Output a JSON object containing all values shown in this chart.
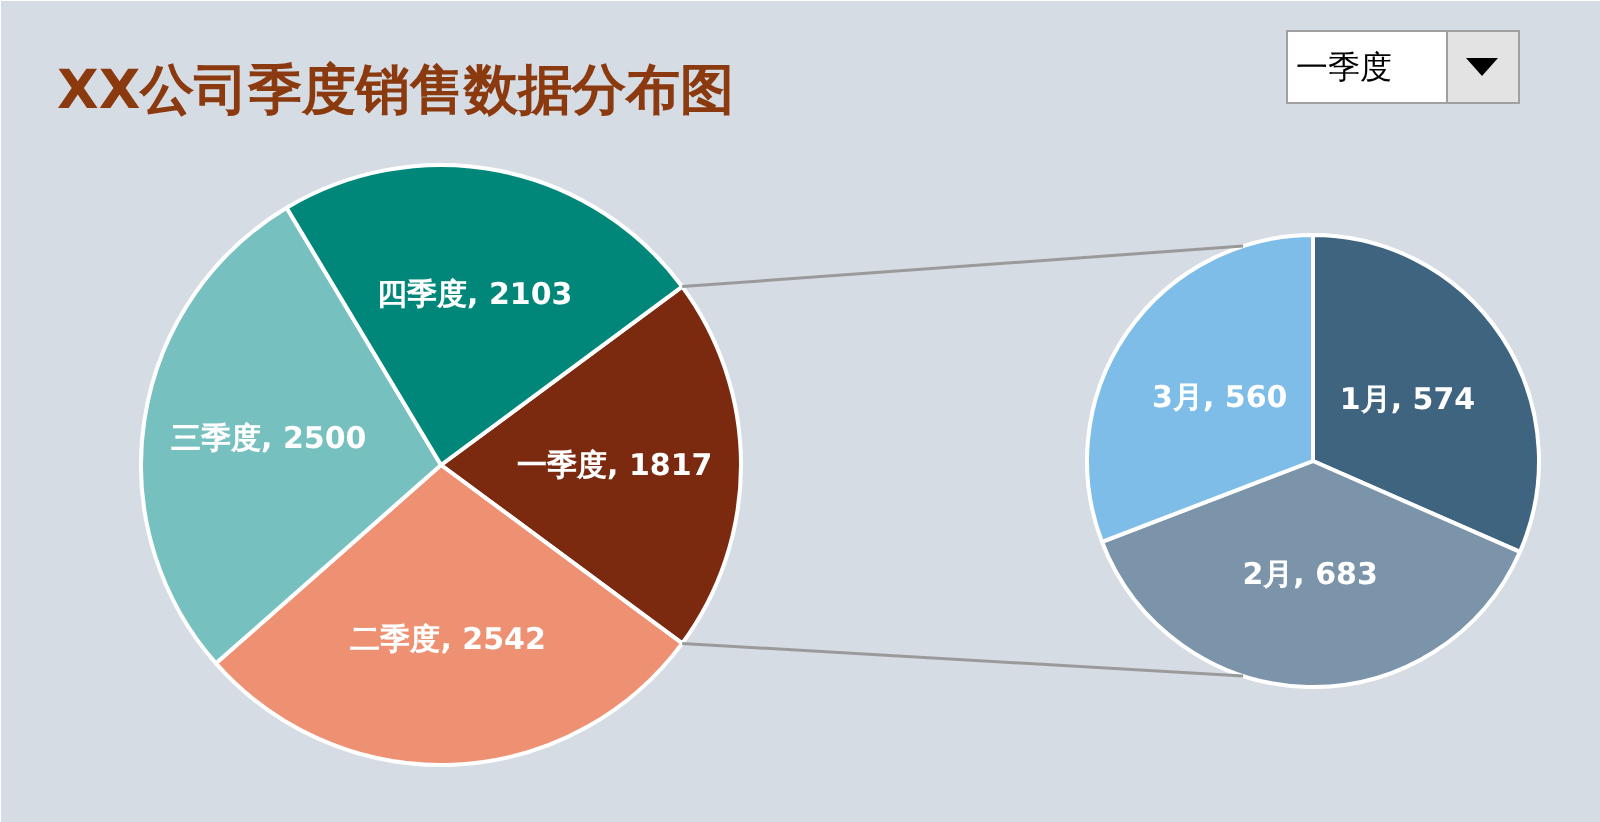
{
  "chart_data": [
    {
      "type": "pie",
      "title": "XX公司季度销售数据分布图",
      "categories": [
        "一季度",
        "二季度",
        "三季度",
        "四季度"
      ],
      "values": [
        1817,
        2542,
        2500,
        2103
      ],
      "value_labels": [
        ", 1817",
        ", 2542",
        ", 2500",
        ", 2103"
      ],
      "colors": [
        "#7b2a10",
        "#ee9173",
        "#76c0bf",
        "#00877a"
      ]
    },
    {
      "type": "pie",
      "title": "一季度",
      "categories": [
        "1月",
        "2月",
        "3月"
      ],
      "values": [
        574,
        683,
        560
      ],
      "value_labels": [
        ", 574",
        ", 683",
        ", 560"
      ],
      "colors": [
        "#3e647f",
        "#7b94a9",
        "#7dbde8"
      ]
    }
  ]
}
